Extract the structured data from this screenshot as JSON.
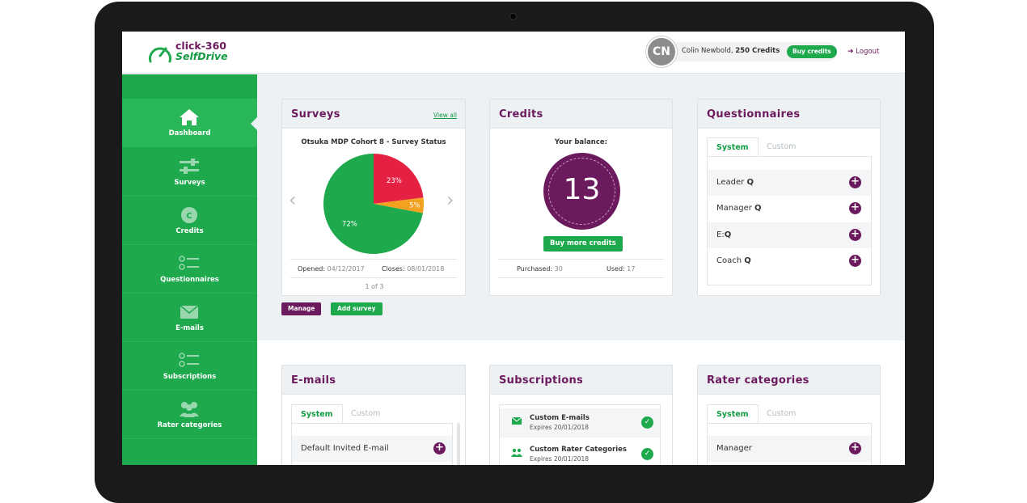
{
  "header": {
    "logo_line1": "click-360",
    "logo_line2": "SelfDrive",
    "avatar_initials": "CN",
    "user_name": "Colin Newbold,",
    "credits_label": "250 Credits",
    "buy_credits": "Buy credits",
    "logout": "Logout"
  },
  "sidebar": {
    "items": [
      {
        "label": "Dashboard",
        "icon": "home-icon"
      },
      {
        "label": "Surveys",
        "icon": "sliders-icon"
      },
      {
        "label": "Credits",
        "icon": "coin-icon"
      },
      {
        "label": "Questionnaires",
        "icon": "checklist-icon"
      },
      {
        "label": "E-mails",
        "icon": "envelope-icon"
      },
      {
        "label": "Subscriptions",
        "icon": "checklist-icon"
      },
      {
        "label": "Rater categories",
        "icon": "users-icon"
      }
    ]
  },
  "surveys": {
    "title": "Surveys",
    "view_all": "View all",
    "survey_name": "Otsuka MDP Cohort 8 - Survey Status",
    "opened_label": "Opened:",
    "opened_date": "04/12/2017",
    "closes_label": "Closes:",
    "closes_date": "08/01/2018",
    "pager": "1 of 3",
    "manage": "Manage",
    "add_survey": "Add survey"
  },
  "chart_data": {
    "type": "pie",
    "series": [
      {
        "label": "23%",
        "value": 23,
        "color": "#e52143"
      },
      {
        "label": "5%",
        "value": 5,
        "color": "#f3a11e"
      },
      {
        "label": "72%",
        "value": 72,
        "color": "#1ea94d"
      }
    ]
  },
  "credits": {
    "title": "Credits",
    "balance_label": "Your balance:",
    "balance": "13",
    "buy_more": "Buy more credits",
    "purchased_label": "Purchased:",
    "purchased": "30",
    "used_label": "Used:",
    "used": "17"
  },
  "questionnaires": {
    "title": "Questionnaires",
    "tab_system": "System",
    "tab_custom": "Custom",
    "items": [
      {
        "name": "Leader",
        "suffix": "Q"
      },
      {
        "name": "Manager",
        "suffix": "Q"
      },
      {
        "name": "E:",
        "suffix": "Q"
      },
      {
        "name": "Coach",
        "suffix": "Q"
      }
    ]
  },
  "emails": {
    "title": "E-mails",
    "tab_system": "System",
    "tab_custom": "Custom",
    "items": [
      "Default Invited E-mail"
    ]
  },
  "subscriptions": {
    "title": "Subscriptions",
    "items": [
      {
        "name": "Custom E-mails",
        "expires": "Expires 20/01/2018"
      },
      {
        "name": "Custom Rater Categories",
        "expires": "Expires 20/01/2018"
      }
    ]
  },
  "rater_categories": {
    "title": "Rater categories",
    "tab_system": "System",
    "tab_custom": "Custom",
    "items": [
      "Manager"
    ]
  },
  "colors": {
    "brand_green": "#1ea94d",
    "brand_purple": "#6b1a5d"
  }
}
